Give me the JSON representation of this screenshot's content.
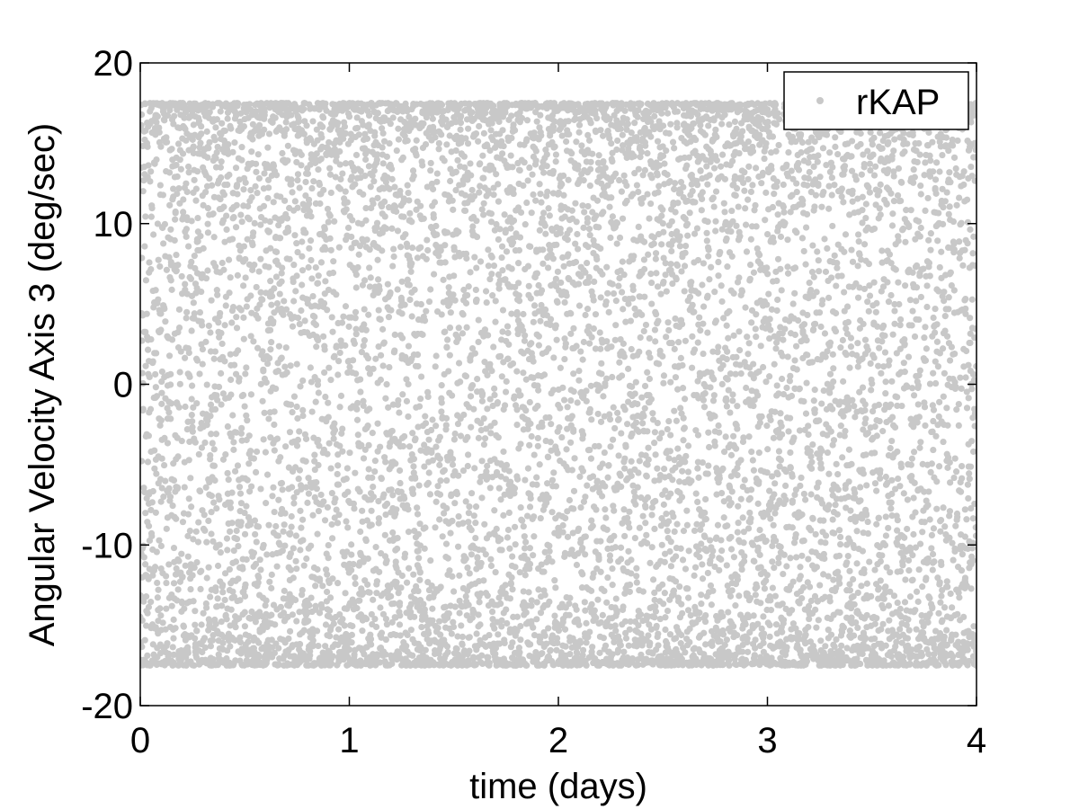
{
  "chart_data": {
    "type": "scatter",
    "title": "",
    "xlabel": "time (days)",
    "ylabel": "Angular Velocity Axis 3 (deg/sec)",
    "xlim": [
      0,
      4
    ],
    "ylim": [
      -20,
      20
    ],
    "xticks": [
      "0",
      "1",
      "2",
      "3",
      "4"
    ],
    "yticks": [
      "20",
      "10",
      "0",
      "-10",
      "-20"
    ],
    "grid": false,
    "legend_position": "top-right",
    "series": [
      {
        "name": "rKAP",
        "color": "#c8c8c8",
        "marker": "dot",
        "description_amplitude": 17.5,
        "x": [
          0,
          0.25,
          0.5,
          0.75,
          1,
          1.25,
          1.5,
          1.75,
          2,
          2.25,
          2.5,
          2.75,
          3,
          3.25,
          3.5,
          3.75,
          4
        ],
        "y_envelope_max": [
          17.5,
          17.3,
          17.5,
          17.4,
          17.5,
          17.4,
          17.5,
          17.4,
          17.5,
          17.4,
          17.5,
          17.4,
          17.5,
          17.4,
          17.5,
          17.4,
          17.5
        ],
        "y_envelope_min": [
          -17.5,
          -17.3,
          -17.5,
          -17.4,
          -17.5,
          -17.4,
          -17.5,
          -17.4,
          -17.5,
          -17.4,
          -17.5,
          -17.4,
          -17.5,
          -17.4,
          -17.5,
          -17.4,
          -17.5
        ]
      }
    ]
  }
}
